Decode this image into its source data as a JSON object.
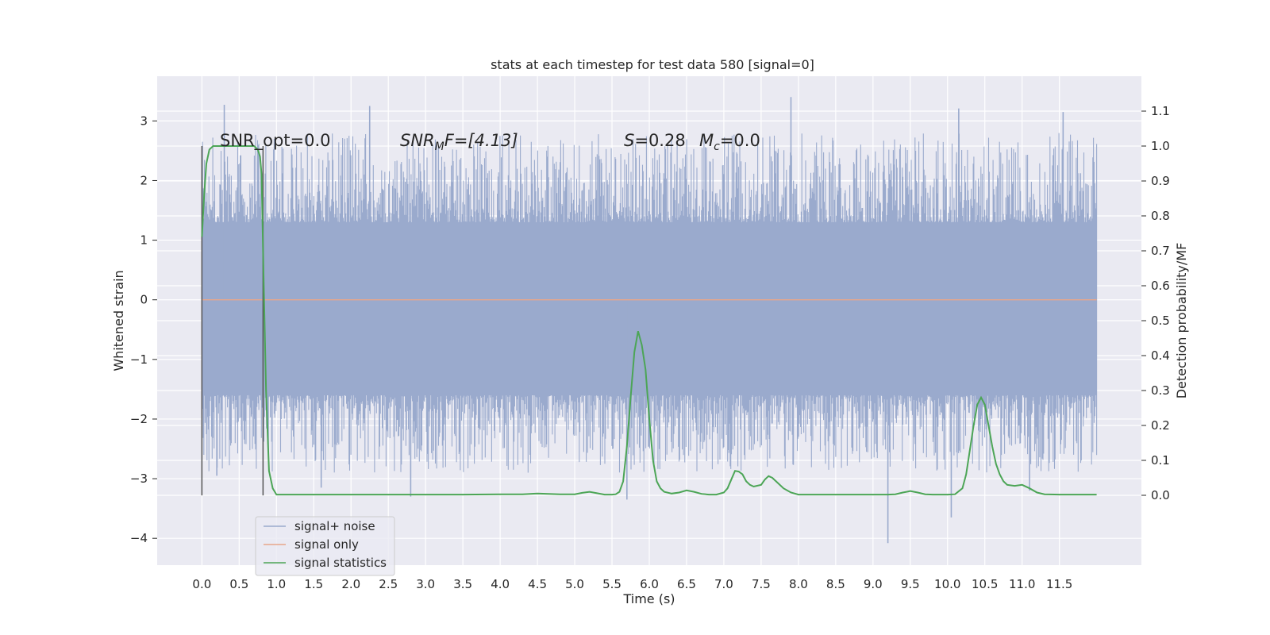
{
  "chart_data": {
    "type": "line",
    "title": "stats at each timestep for test data 580 [signal=0]",
    "xlabel": "Time (s)",
    "ylabel": "Whitened strain",
    "ylabel_right": "Detection probability/MF",
    "xlim": [
      -0.6,
      12.6
    ],
    "ylim": [
      -4.45,
      3.75
    ],
    "ylim_right": [
      -0.2,
      1.2
    ],
    "x_ticks": [
      "0.0",
      "0.5",
      "1.0",
      "1.5",
      "2.0",
      "2.5",
      "3.0",
      "3.5",
      "4.0",
      "4.5",
      "5.0",
      "5.5",
      "6.0",
      "6.5",
      "7.0",
      "7.5",
      "8.0",
      "8.5",
      "9.0",
      "9.5",
      "10.0",
      "10.5",
      "11.0",
      "11.5"
    ],
    "y_ticks": [
      -4,
      -3,
      -2,
      -1,
      0,
      1,
      2,
      3
    ],
    "y_ticks_right": [
      "0.0",
      "0.1",
      "0.2",
      "0.3",
      "0.4",
      "0.5",
      "0.6",
      "0.7",
      "0.8",
      "0.9",
      "1.0",
      "1.1"
    ],
    "grid": true,
    "background": "#EAEAF2",
    "annotations": {
      "snr_opt": "SNR_opt=0.0",
      "snr_mf_sym": "SNR",
      "snr_mf_sub": "M",
      "snr_mf_tail": "F=[4.13]",
      "s_sym": "S",
      "s_val": "=0.28",
      "mc_sym": "M",
      "mc_sub": "c",
      "mc_val": "=0.0"
    },
    "vertical_markers": [
      0.0,
      0.82
    ],
    "noise_band": {
      "x_range": [
        0.0,
        12.0
      ],
      "typical_range": [
        -1.6,
        1.3
      ]
    },
    "noise_spikes": [
      {
        "x": 0.3,
        "y": 3.27
      },
      {
        "x": 2.25,
        "y": 3.25
      },
      {
        "x": 7.9,
        "y": 3.4
      },
      {
        "x": 10.15,
        "y": 3.21
      },
      {
        "x": 11.55,
        "y": 3.15
      },
      {
        "x": 9.2,
        "y": -4.08
      },
      {
        "x": 10.05,
        "y": -3.65
      },
      {
        "x": 2.8,
        "y": -3.3
      },
      {
        "x": 5.7,
        "y": -3.35
      },
      {
        "x": 1.6,
        "y": -3.15
      },
      {
        "x": 0.2,
        "y": -2.95
      },
      {
        "x": 11.1,
        "y": -3.2
      }
    ],
    "series": [
      {
        "name": "signal+ noise",
        "color": "#9AAACD"
      },
      {
        "name": "signal only",
        "color": "#E8A68A"
      },
      {
        "name": "signal statistics",
        "color": "#4CA556",
        "x": [
          0.0,
          0.03,
          0.06,
          0.1,
          0.15,
          0.2,
          0.3,
          0.4,
          0.5,
          0.6,
          0.7,
          0.75,
          0.78,
          0.8,
          0.83,
          0.86,
          0.9,
          0.95,
          1.0,
          1.5,
          2.0,
          2.5,
          3.0,
          3.5,
          4.0,
          4.3,
          4.5,
          4.8,
          5.0,
          5.1,
          5.2,
          5.3,
          5.4,
          5.5,
          5.55,
          5.6,
          5.65,
          5.7,
          5.75,
          5.8,
          5.85,
          5.9,
          5.95,
          6.0,
          6.05,
          6.1,
          6.15,
          6.2,
          6.3,
          6.4,
          6.5,
          6.6,
          6.7,
          6.8,
          6.9,
          7.0,
          7.05,
          7.1,
          7.15,
          7.2,
          7.25,
          7.3,
          7.35,
          7.4,
          7.5,
          7.55,
          7.6,
          7.65,
          7.7,
          7.8,
          7.9,
          8.0,
          8.5,
          9.0,
          9.2,
          9.3,
          9.4,
          9.5,
          9.6,
          9.7,
          9.8,
          10.0,
          10.1,
          10.2,
          10.25,
          10.3,
          10.35,
          10.4,
          10.45,
          10.5,
          10.55,
          10.6,
          10.65,
          10.7,
          10.75,
          10.8,
          10.9,
          11.0,
          11.1,
          11.2,
          11.3,
          11.5,
          11.7,
          12.0
        ],
        "y": [
          0.74,
          0.86,
          0.95,
          0.99,
          1.0,
          1.0,
          1.0,
          1.0,
          1.0,
          1.0,
          1.0,
          0.99,
          0.97,
          0.92,
          0.6,
          0.3,
          0.07,
          0.02,
          0.002,
          0.002,
          0.002,
          0.002,
          0.002,
          0.002,
          0.003,
          0.003,
          0.005,
          0.003,
          0.003,
          0.007,
          0.01,
          0.006,
          0.002,
          0.002,
          0.003,
          0.01,
          0.04,
          0.14,
          0.28,
          0.41,
          0.47,
          0.43,
          0.36,
          0.22,
          0.1,
          0.04,
          0.02,
          0.01,
          0.005,
          0.008,
          0.014,
          0.01,
          0.004,
          0.002,
          0.002,
          0.008,
          0.02,
          0.045,
          0.07,
          0.068,
          0.06,
          0.04,
          0.03,
          0.025,
          0.03,
          0.045,
          0.055,
          0.05,
          0.04,
          0.02,
          0.008,
          0.002,
          0.002,
          0.002,
          0.002,
          0.003,
          0.008,
          0.012,
          0.008,
          0.003,
          0.002,
          0.002,
          0.003,
          0.02,
          0.06,
          0.13,
          0.2,
          0.26,
          0.28,
          0.26,
          0.2,
          0.14,
          0.09,
          0.06,
          0.04,
          0.03,
          0.027,
          0.03,
          0.02,
          0.008,
          0.003,
          0.002,
          0.002,
          0.002
        ]
      }
    ]
  }
}
